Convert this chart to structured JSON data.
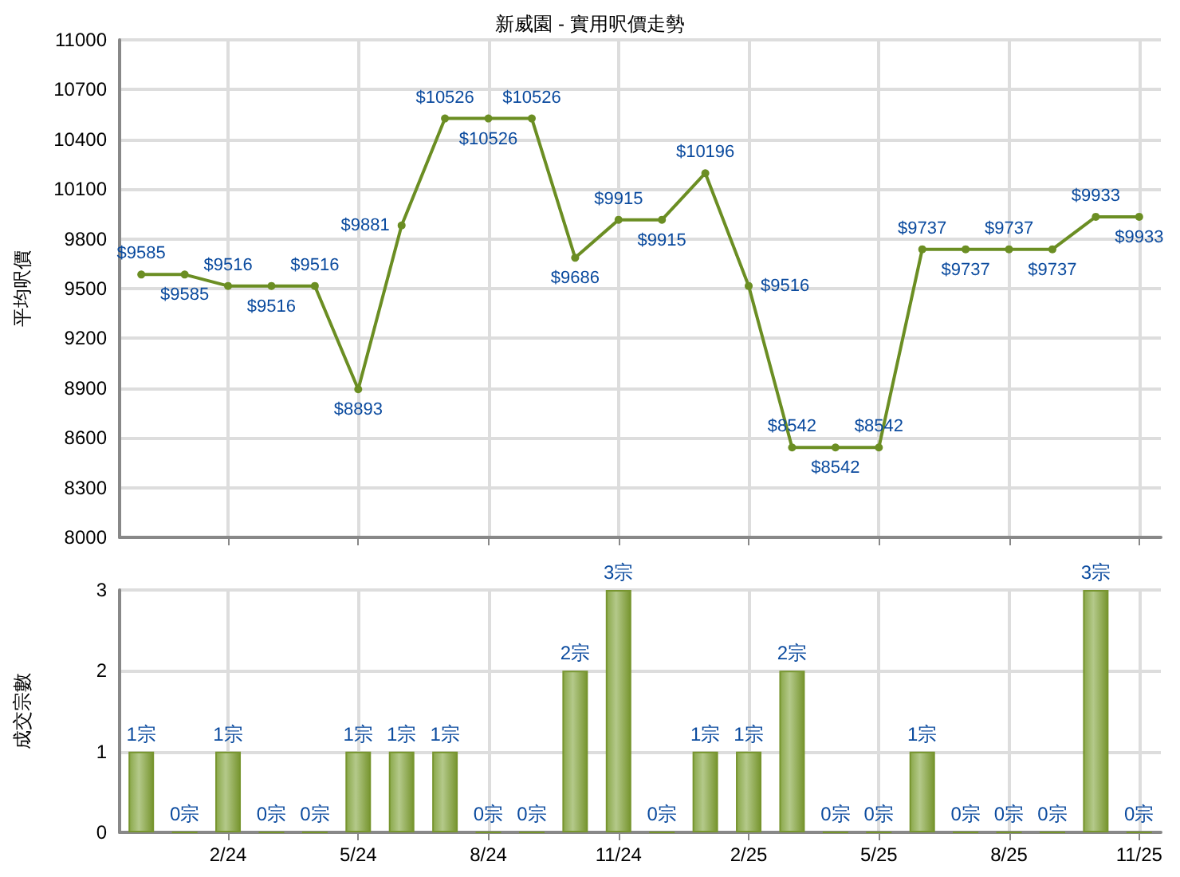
{
  "chart_data": [
    {
      "type": "line",
      "title": "新威園 - 實用呎價走勢",
      "ylabel": "平均呎價",
      "categories": [
        null,
        null,
        null,
        null,
        null,
        null,
        null,
        null,
        null,
        null,
        null,
        null,
        null,
        null,
        null,
        null,
        null,
        null,
        null,
        null,
        null,
        null,
        null,
        null
      ],
      "series": [
        {
          "color": "#6b8e23",
          "values": [
            9585,
            9585,
            9516,
            9516,
            9516,
            8893,
            9881,
            10526,
            10526,
            10526,
            9686,
            9915,
            9915,
            10196,
            9516,
            8542,
            8542,
            8542,
            9737,
            9737,
            9737,
            9737,
            9933,
            9933
          ],
          "value_labels": [
            "$9585",
            "$9585",
            "$9516",
            "$9516",
            "$9516",
            "$8893",
            "$9881",
            "$10526",
            "$10526",
            "$10526",
            "$9686",
            "$9915",
            "$9915",
            "$10196",
            "$9516",
            "$8542",
            "$8542",
            "$8542",
            "$9737",
            "$9737",
            "$9737",
            "$9737",
            "$9933",
            "$9933"
          ]
        }
      ],
      "ylim": [
        8000,
        11000
      ],
      "yticks": [
        8000,
        8300,
        8600,
        8900,
        9200,
        9500,
        9800,
        10100,
        10400,
        10700,
        11000
      ],
      "grid": true,
      "marker": "circle",
      "line_style": "solid",
      "tick_labels": "y"
    },
    {
      "type": "bar",
      "ylabel": "成交宗數",
      "categories": [
        null,
        null,
        "2/24",
        null,
        null,
        "5/24",
        null,
        null,
        "8/24",
        null,
        null,
        "11/24",
        null,
        null,
        "2/25",
        null,
        null,
        "5/25",
        null,
        null,
        "8/25",
        null,
        null,
        "11/25"
      ],
      "values": [
        1,
        0,
        1,
        0,
        0,
        1,
        1,
        1,
        0,
        0,
        2,
        3,
        0,
        1,
        1,
        2,
        0,
        0,
        1,
        0,
        0,
        0,
        3,
        0
      ],
      "color": "#77952f",
      "value_labels": [
        "1宗",
        "0宗",
        "1宗",
        "0宗",
        "0宗",
        "1宗",
        "1宗",
        "1宗",
        "0宗",
        "0宗",
        "2宗",
        "3宗",
        "0宗",
        "1宗",
        "1宗",
        "2宗",
        "0宗",
        "0宗",
        "1宗",
        "0宗",
        "0宗",
        "0宗",
        "3宗",
        "0宗"
      ],
      "ylim": [
        0,
        3
      ],
      "yticks": [
        0,
        1,
        2,
        3
      ],
      "grid": true
    }
  ]
}
